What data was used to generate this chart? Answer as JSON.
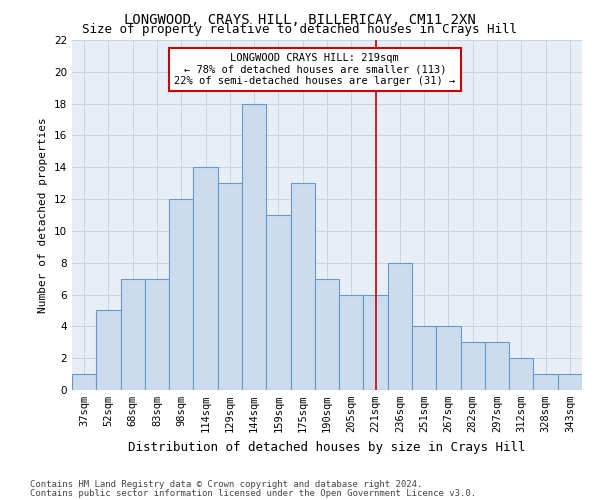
{
  "title": "LONGWOOD, CRAYS HILL, BILLERICAY, CM11 2XN",
  "subtitle": "Size of property relative to detached houses in Crays Hill",
  "xlabel": "Distribution of detached houses by size in Crays Hill",
  "ylabel": "Number of detached properties",
  "categories": [
    "37sqm",
    "52sqm",
    "68sqm",
    "83sqm",
    "98sqm",
    "114sqm",
    "129sqm",
    "144sqm",
    "159sqm",
    "175sqm",
    "190sqm",
    "205sqm",
    "221sqm",
    "236sqm",
    "251sqm",
    "267sqm",
    "282sqm",
    "297sqm",
    "312sqm",
    "328sqm",
    "343sqm"
  ],
  "values": [
    1,
    5,
    7,
    7,
    12,
    14,
    13,
    18,
    11,
    13,
    7,
    6,
    6,
    8,
    4,
    4,
    3,
    3,
    2,
    1,
    1
  ],
  "bar_color": "#ccdcee",
  "bar_edge_color": "#6699cc",
  "bar_linewidth": 0.8,
  "grid_color": "#c8d4e4",
  "bg_color": "#e8eef6",
  "ylim": [
    0,
    22
  ],
  "yticks": [
    0,
    2,
    4,
    6,
    8,
    10,
    12,
    14,
    16,
    18,
    20,
    22
  ],
  "vline_x_index": 12,
  "vline_color": "#cc0000",
  "annotation_title": "LONGWOOD CRAYS HILL: 219sqm",
  "annotation_line1": "← 78% of detached houses are smaller (113)",
  "annotation_line2": "22% of semi-detached houses are larger (31) →",
  "annotation_box_color": "#cc0000",
  "footnote1": "Contains HM Land Registry data © Crown copyright and database right 2024.",
  "footnote2": "Contains public sector information licensed under the Open Government Licence v3.0.",
  "title_fontsize": 10,
  "subtitle_fontsize": 9,
  "xlabel_fontsize": 9,
  "ylabel_fontsize": 8,
  "tick_fontsize": 7.5,
  "annotation_fontsize": 7.5,
  "footnote_fontsize": 6.5
}
